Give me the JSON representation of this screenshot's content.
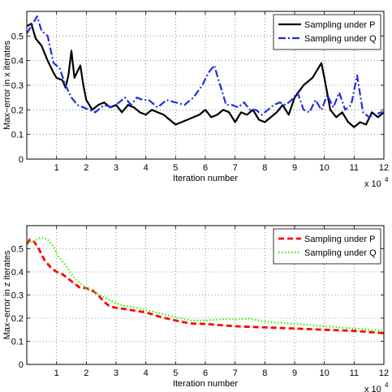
{
  "chart_data": [
    {
      "type": "line",
      "xlabel": "Iteration number",
      "ylabel": "Max−error in x iterates",
      "x_exponent_label": "x 10",
      "x_exponent_power": "4",
      "xlim": [
        0,
        12
      ],
      "ylim": [
        0,
        0.6
      ],
      "xticks": [
        "1",
        "2",
        "3",
        "4",
        "5",
        "6",
        "7",
        "8",
        "9",
        "10",
        "11",
        "12"
      ],
      "yticks": [
        "0",
        "0.1",
        "0.2",
        "0.3",
        "0.4",
        "0.5"
      ],
      "grid": true,
      "legend_position": "top-right",
      "series": [
        {
          "name": "Sampling under P",
          "color": "#000000",
          "style": "solid",
          "points": [
            [
              0,
              0.54
            ],
            [
              0.15,
              0.55
            ],
            [
              0.3,
              0.49
            ],
            [
              0.5,
              0.46
            ],
            [
              0.7,
              0.4
            ],
            [
              0.9,
              0.35
            ],
            [
              1.0,
              0.33
            ],
            [
              1.2,
              0.32
            ],
            [
              1.3,
              0.29
            ],
            [
              1.4,
              0.34
            ],
            [
              1.5,
              0.44
            ],
            [
              1.6,
              0.33
            ],
            [
              1.8,
              0.38
            ],
            [
              1.9,
              0.3
            ],
            [
              2.0,
              0.24
            ],
            [
              2.2,
              0.2
            ],
            [
              2.4,
              0.22
            ],
            [
              2.6,
              0.23
            ],
            [
              2.8,
              0.21
            ],
            [
              3.0,
              0.22
            ],
            [
              3.2,
              0.19
            ],
            [
              3.4,
              0.22
            ],
            [
              3.6,
              0.21
            ],
            [
              3.8,
              0.19
            ],
            [
              4.0,
              0.18
            ],
            [
              4.2,
              0.2
            ],
            [
              4.4,
              0.19
            ],
            [
              4.6,
              0.18
            ],
            [
              4.8,
              0.16
            ],
            [
              5.0,
              0.14
            ],
            [
              5.2,
              0.15
            ],
            [
              5.4,
              0.16
            ],
            [
              5.6,
              0.17
            ],
            [
              5.8,
              0.18
            ],
            [
              6.0,
              0.2
            ],
            [
              6.2,
              0.17
            ],
            [
              6.4,
              0.18
            ],
            [
              6.6,
              0.2
            ],
            [
              6.8,
              0.19
            ],
            [
              7.0,
              0.15
            ],
            [
              7.2,
              0.19
            ],
            [
              7.4,
              0.18
            ],
            [
              7.6,
              0.2
            ],
            [
              7.8,
              0.16
            ],
            [
              8.0,
              0.15
            ],
            [
              8.2,
              0.17
            ],
            [
              8.4,
              0.19
            ],
            [
              8.6,
              0.22
            ],
            [
              8.8,
              0.18
            ],
            [
              9.0,
              0.25
            ],
            [
              9.3,
              0.3
            ],
            [
              9.6,
              0.33
            ],
            [
              9.9,
              0.39
            ],
            [
              10.0,
              0.33
            ],
            [
              10.2,
              0.2
            ],
            [
              10.4,
              0.17
            ],
            [
              10.6,
              0.19
            ],
            [
              10.8,
              0.15
            ],
            [
              11.0,
              0.13
            ],
            [
              11.2,
              0.15
            ],
            [
              11.4,
              0.14
            ],
            [
              11.6,
              0.19
            ],
            [
              11.8,
              0.17
            ],
            [
              12.0,
              0.19
            ]
          ]
        },
        {
          "name": "Sampling under Q",
          "color": "#1f2fe0",
          "style": "dashdot",
          "points": [
            [
              0,
              0.51
            ],
            [
              0.2,
              0.55
            ],
            [
              0.35,
              0.58
            ],
            [
              0.5,
              0.52
            ],
            [
              0.7,
              0.5
            ],
            [
              0.9,
              0.39
            ],
            [
              1.1,
              0.37
            ],
            [
              1.3,
              0.3
            ],
            [
              1.5,
              0.25
            ],
            [
              1.7,
              0.22
            ],
            [
              1.9,
              0.21
            ],
            [
              2.1,
              0.2
            ],
            [
              2.3,
              0.19
            ],
            [
              2.6,
              0.22
            ],
            [
              2.9,
              0.21
            ],
            [
              3.1,
              0.23
            ],
            [
              3.3,
              0.25
            ],
            [
              3.5,
              0.22
            ],
            [
              3.7,
              0.25
            ],
            [
              3.9,
              0.24
            ],
            [
              4.1,
              0.24
            ],
            [
              4.4,
              0.21
            ],
            [
              4.7,
              0.24
            ],
            [
              5.0,
              0.23
            ],
            [
              5.3,
              0.22
            ],
            [
              5.6,
              0.25
            ],
            [
              5.9,
              0.3
            ],
            [
              6.1,
              0.35
            ],
            [
              6.3,
              0.38
            ],
            [
              6.5,
              0.3
            ],
            [
              6.7,
              0.22
            ],
            [
              6.9,
              0.22
            ],
            [
              7.1,
              0.21
            ],
            [
              7.3,
              0.23
            ],
            [
              7.5,
              0.2
            ],
            [
              7.7,
              0.2
            ],
            [
              7.9,
              0.18
            ],
            [
              8.1,
              0.2
            ],
            [
              8.3,
              0.22
            ],
            [
              8.5,
              0.23
            ],
            [
              8.7,
              0.22
            ],
            [
              8.9,
              0.24
            ],
            [
              9.1,
              0.27
            ],
            [
              9.3,
              0.2
            ],
            [
              9.5,
              0.19
            ],
            [
              9.7,
              0.24
            ],
            [
              9.9,
              0.2
            ],
            [
              10.1,
              0.26
            ],
            [
              10.3,
              0.21
            ],
            [
              10.5,
              0.27
            ],
            [
              10.7,
              0.2
            ],
            [
              10.9,
              0.22
            ],
            [
              11.1,
              0.34
            ],
            [
              11.3,
              0.19
            ],
            [
              11.5,
              0.17
            ],
            [
              11.7,
              0.18
            ],
            [
              11.9,
              0.19
            ],
            [
              12.0,
              0.19
            ]
          ]
        }
      ]
    },
    {
      "type": "line",
      "xlabel": "Iteration number",
      "ylabel": "Max−error in z iterates",
      "x_exponent_label": "x 10",
      "x_exponent_power": "4",
      "xlim": [
        0,
        12
      ],
      "ylim": [
        0,
        0.6
      ],
      "xticks": [
        "1",
        "2",
        "3",
        "4",
        "5",
        "6",
        "7",
        "8",
        "9",
        "10",
        "11",
        "12"
      ],
      "yticks": [
        "0",
        "0.1",
        "0.2",
        "0.3",
        "0.4",
        "0.5"
      ],
      "grid": true,
      "legend_position": "top-right",
      "series": [
        {
          "name": "Sampling under P",
          "color": "#ff0000",
          "style": "dashed",
          "points": [
            [
              0,
              0.52
            ],
            [
              0.1,
              0.54
            ],
            [
              0.25,
              0.53
            ],
            [
              0.4,
              0.5
            ],
            [
              0.6,
              0.45
            ],
            [
              0.8,
              0.42
            ],
            [
              1.0,
              0.4
            ],
            [
              1.2,
              0.39
            ],
            [
              1.4,
              0.37
            ],
            [
              1.6,
              0.35
            ],
            [
              1.8,
              0.33
            ],
            [
              2.0,
              0.33
            ],
            [
              2.2,
              0.32
            ],
            [
              2.4,
              0.3
            ],
            [
              2.6,
              0.27
            ],
            [
              2.8,
              0.25
            ],
            [
              3.0,
              0.245
            ],
            [
              3.5,
              0.235
            ],
            [
              4.0,
              0.225
            ],
            [
              4.5,
              0.205
            ],
            [
              5.0,
              0.19
            ],
            [
              5.5,
              0.177
            ],
            [
              6.0,
              0.175
            ],
            [
              6.5,
              0.17
            ],
            [
              7.0,
              0.165
            ],
            [
              8.0,
              0.16
            ],
            [
              9.0,
              0.155
            ],
            [
              10.0,
              0.15
            ],
            [
              11.0,
              0.145
            ],
            [
              12.0,
              0.135
            ]
          ]
        },
        {
          "name": "Sampling under Q",
          "color": "#33ee00",
          "style": "dotted",
          "points": [
            [
              0,
              0.53
            ],
            [
              0.2,
              0.53
            ],
            [
              0.35,
              0.54
            ],
            [
              0.5,
              0.55
            ],
            [
              0.7,
              0.54
            ],
            [
              0.9,
              0.51
            ],
            [
              1.1,
              0.46
            ],
            [
              1.3,
              0.43
            ],
            [
              1.5,
              0.39
            ],
            [
              1.7,
              0.36
            ],
            [
              1.9,
              0.34
            ],
            [
              2.1,
              0.32
            ],
            [
              2.3,
              0.31
            ],
            [
              2.6,
              0.29
            ],
            [
              2.9,
              0.27
            ],
            [
              3.2,
              0.255
            ],
            [
              3.5,
              0.25
            ],
            [
              4.0,
              0.235
            ],
            [
              4.5,
              0.22
            ],
            [
              5.0,
              0.205
            ],
            [
              5.5,
              0.19
            ],
            [
              6.0,
              0.19
            ],
            [
              6.5,
              0.195
            ],
            [
              7.0,
              0.195
            ],
            [
              7.5,
              0.198
            ],
            [
              8.0,
              0.185
            ],
            [
              8.5,
              0.18
            ],
            [
              9.0,
              0.175
            ],
            [
              10.0,
              0.165
            ],
            [
              11.0,
              0.155
            ],
            [
              12.0,
              0.145
            ]
          ]
        }
      ]
    }
  ]
}
